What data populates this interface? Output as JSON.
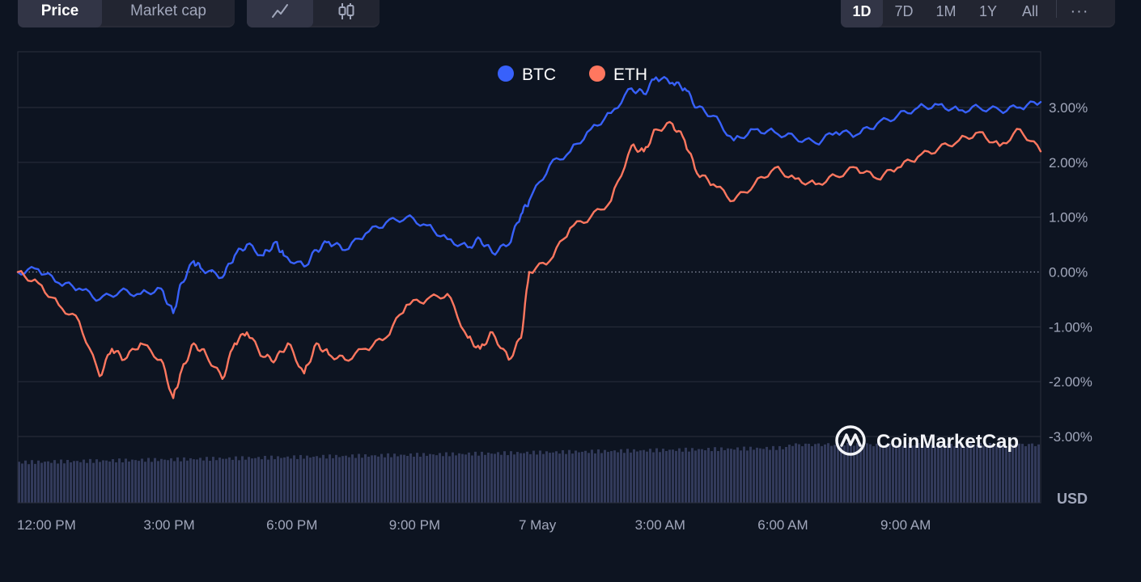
{
  "toolbar": {
    "metric_tabs": [
      "Price",
      "Market cap"
    ],
    "active_metric": "Price",
    "chart_type_icons": [
      "line-chart-icon",
      "candlestick-icon"
    ],
    "active_chart_type": "line-chart-icon",
    "range_tabs": [
      "1D",
      "7D",
      "1M",
      "1Y",
      "All"
    ],
    "active_range": "1D",
    "more_label": "···"
  },
  "watermark": "CoinMarketCap",
  "colors": {
    "background": "#0d1421",
    "btc": "#3861fb",
    "eth": "#ff775f",
    "grid": "#2a2f3d",
    "volume": "#323a5a"
  },
  "chart_data": {
    "type": "line",
    "title": "",
    "xlabel": "",
    "ylabel": "USD",
    "ylim": [
      -3.0,
      3.0
    ],
    "y_ticks": [
      "3.00%",
      "2.00%",
      "1.00%",
      "0.00%",
      "-1.00%",
      "-2.00%",
      "-3.00%"
    ],
    "x_ticks": [
      "12:00 PM",
      "3:00 PM",
      "6:00 PM",
      "9:00 PM",
      "7 May",
      "3:00 AM",
      "6:00 AM",
      "9:00 AM"
    ],
    "x_tick_hours": [
      0.7,
      3.7,
      6.7,
      9.7,
      12.7,
      15.7,
      18.7,
      21.7
    ],
    "x_range_hours": [
      0,
      25
    ],
    "grid": true,
    "legend": "top-center",
    "series": [
      {
        "name": "BTC",
        "color": "#3861fb",
        "x": [
          0,
          0.5,
          1,
          1.5,
          2,
          2.5,
          3,
          3.5,
          3.8,
          4,
          4.3,
          4.5,
          5,
          5.3,
          5.6,
          6,
          6.3,
          6.5,
          7,
          7.3,
          7.6,
          8,
          8.5,
          9,
          9.5,
          10,
          10.5,
          11,
          11.3,
          11.6,
          12,
          12.3,
          12.5,
          13,
          13.5,
          14,
          14.5,
          15,
          15.3,
          15.6,
          16,
          16.3,
          16.6,
          17,
          17.5,
          18,
          18.5,
          19,
          19.5,
          20,
          20.5,
          21,
          21.5,
          22,
          22.5,
          23,
          23.5,
          24,
          24.5,
          25
        ],
        "values": [
          0.0,
          0.05,
          -0.2,
          -0.3,
          -0.5,
          -0.35,
          -0.4,
          -0.3,
          -0.75,
          -0.2,
          0.2,
          0.05,
          -0.1,
          0.3,
          0.5,
          0.3,
          0.55,
          0.3,
          0.1,
          0.4,
          0.55,
          0.4,
          0.7,
          0.9,
          1.0,
          0.85,
          0.6,
          0.45,
          0.6,
          0.35,
          0.5,
          1.05,
          1.3,
          1.95,
          2.2,
          2.6,
          2.9,
          3.35,
          3.25,
          3.55,
          3.45,
          3.35,
          3.0,
          2.85,
          2.4,
          2.6,
          2.55,
          2.45,
          2.35,
          2.55,
          2.5,
          2.7,
          2.85,
          3.0,
          3.05,
          2.95,
          3.0,
          2.95,
          3.0,
          3.1
        ]
      },
      {
        "name": "ETH",
        "color": "#ff775f",
        "x": [
          0,
          0.5,
          1,
          1.5,
          2,
          2.3,
          2.6,
          3,
          3.5,
          3.8,
          4,
          4.3,
          4.6,
          5,
          5.3,
          5.6,
          6,
          6.3,
          6.6,
          7,
          7.3,
          7.6,
          8,
          8.5,
          9,
          9.5,
          10,
          10.5,
          11,
          11.3,
          11.6,
          12,
          12.3,
          12.5,
          13,
          13.5,
          14,
          14.5,
          15,
          15.3,
          15.6,
          16,
          16.3,
          16.6,
          17,
          17.5,
          18,
          18.5,
          19,
          19.5,
          20,
          20.5,
          21,
          21.5,
          22,
          22.5,
          23,
          23.5,
          24,
          24.5,
          25
        ],
        "values": [
          0.0,
          -0.2,
          -0.6,
          -0.9,
          -1.9,
          -1.4,
          -1.6,
          -1.3,
          -1.6,
          -2.3,
          -1.8,
          -1.3,
          -1.5,
          -1.95,
          -1.3,
          -1.1,
          -1.55,
          -1.6,
          -1.3,
          -1.85,
          -1.3,
          -1.5,
          -1.6,
          -1.4,
          -1.2,
          -0.6,
          -0.5,
          -0.4,
          -1.2,
          -1.4,
          -1.1,
          -1.6,
          -1.2,
          0.0,
          0.2,
          0.8,
          1.0,
          1.3,
          2.3,
          2.2,
          2.6,
          2.7,
          2.4,
          1.8,
          1.6,
          1.3,
          1.6,
          1.9,
          1.7,
          1.6,
          1.75,
          1.9,
          1.7,
          1.9,
          2.1,
          2.25,
          2.4,
          2.55,
          2.3,
          2.6,
          2.2
        ]
      }
    ]
  }
}
